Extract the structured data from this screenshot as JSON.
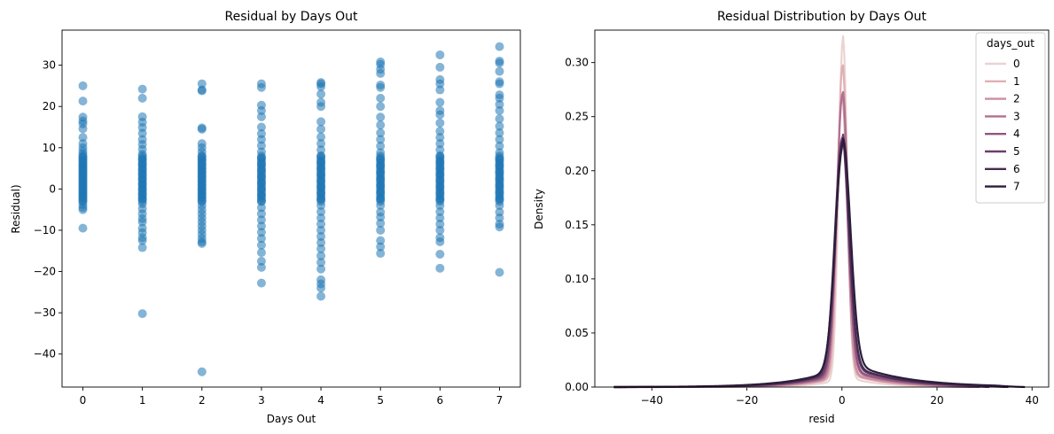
{
  "chart_data": [
    {
      "type": "scatter",
      "title": "Residual by Days Out",
      "xlabel": "Days Out",
      "ylabel": "Residual)",
      "xlim": [
        -0.35,
        7.35
      ],
      "ylim": [
        -48,
        38.5
      ],
      "xticks": [
        0,
        1,
        2,
        3,
        4,
        5,
        6,
        7
      ],
      "yticks": [
        -40,
        -30,
        -20,
        -10,
        0,
        10,
        20,
        30
      ],
      "marker_color": "#1f77b4",
      "marker_alpha": 0.55,
      "series": [
        {
          "x": 0,
          "values": [
            25.0,
            21.3,
            17.4,
            16.5,
            15.8,
            14.6,
            12.5,
            11.0,
            10.0,
            9.2,
            8.5,
            7.8,
            7.0,
            6.2,
            5.5,
            4.8,
            4.1,
            3.4,
            2.7,
            2.0,
            1.3,
            0.6,
            -0.1,
            -0.8,
            -1.5,
            -2.2,
            -3.0,
            -3.8,
            -4.5,
            -5.0,
            -9.5
          ]
        },
        {
          "x": 1,
          "values": [
            24.2,
            22.0,
            17.5,
            16.2,
            14.9,
            13.5,
            12.0,
            10.8,
            9.6,
            8.4,
            7.2,
            6.0,
            4.8,
            3.6,
            2.4,
            1.2,
            0.0,
            -1.2,
            -2.4,
            -3.6,
            -4.8,
            -6.0,
            -7.2,
            -8.0,
            -9.5,
            -10.6,
            -11.8,
            -12.5,
            -14.2,
            -30.2
          ]
        },
        {
          "x": 2,
          "values": [
            25.5,
            24.0,
            23.8,
            14.8,
            14.5,
            11.0,
            10.0,
            9.0,
            8.0,
            7.0,
            6.0,
            5.0,
            4.0,
            3.0,
            2.0,
            1.0,
            0.0,
            -1.0,
            -2.0,
            -3.0,
            -4.0,
            -5.0,
            -6.0,
            -7.0,
            -8.0,
            -9.0,
            -10.0,
            -11.0,
            -12.0,
            -12.8,
            -13.2,
            -44.3
          ]
        },
        {
          "x": 3,
          "values": [
            25.5,
            24.6,
            20.3,
            19.0,
            17.5,
            15.0,
            13.4,
            12.0,
            10.5,
            9.0,
            7.5,
            6.0,
            4.5,
            3.0,
            1.5,
            0.0,
            -1.5,
            -3.0,
            -4.5,
            -6.0,
            -7.5,
            -9.0,
            -10.5,
            -12.0,
            -13.6,
            -15.4,
            -17.5,
            -19.0,
            -22.8
          ]
        },
        {
          "x": 4,
          "values": [
            25.8,
            25.5,
            24.8,
            23.0,
            21.0,
            20.0,
            16.3,
            14.5,
            12.6,
            11.0,
            9.5,
            8.0,
            6.5,
            5.0,
            3.5,
            2.0,
            0.5,
            -1.0,
            -2.5,
            -4.0,
            -5.5,
            -7.0,
            -8.5,
            -10.0,
            -11.5,
            -13.0,
            -14.5,
            -16.2,
            -17.8,
            -19.4,
            -22.0,
            -23.0,
            -24.0,
            -26.0
          ]
        },
        {
          "x": 5,
          "values": [
            30.8,
            30.2,
            29.0,
            28.0,
            25.2,
            24.6,
            22.0,
            20.0,
            17.4,
            15.5,
            13.6,
            12.0,
            10.4,
            8.8,
            7.2,
            5.6,
            4.0,
            2.4,
            0.8,
            -0.8,
            -2.4,
            -4.0,
            -5.6,
            -6.8,
            -8.3,
            -10.0,
            -12.5,
            -14.0,
            -15.6
          ]
        },
        {
          "x": 6,
          "values": [
            32.5,
            29.5,
            26.5,
            25.5,
            24.0,
            21.0,
            19.0,
            18.0,
            16.0,
            14.0,
            12.5,
            11.0,
            9.5,
            8.0,
            6.5,
            5.0,
            3.5,
            2.0,
            0.5,
            -1.0,
            -2.5,
            -4.0,
            -5.5,
            -7.0,
            -8.5,
            -10.0,
            -11.8,
            -12.8,
            -15.8,
            -19.2
          ]
        },
        {
          "x": 7,
          "values": [
            34.5,
            31.0,
            30.5,
            28.5,
            26.0,
            25.5,
            22.8,
            22.0,
            20.5,
            19.0,
            17.0,
            15.2,
            13.6,
            12.0,
            10.4,
            8.8,
            7.2,
            5.6,
            4.0,
            2.4,
            0.8,
            -0.8,
            -2.4,
            -4.0,
            -5.6,
            -7.0,
            -8.5,
            -9.2,
            -20.2
          ]
        }
      ]
    },
    {
      "type": "line",
      "title": "Residual Distribution by Days Out",
      "xlabel": "resid",
      "ylabel": "Density",
      "xlim": [
        -52,
        43.5
      ],
      "ylim": [
        0,
        0.33
      ],
      "xticks": [
        -40,
        -20,
        0,
        20,
        40
      ],
      "yticks": [
        0.0,
        0.05,
        0.1,
        0.15,
        0.2,
        0.25,
        0.3
      ],
      "ytick_labels": [
        "0.00",
        "0.05",
        "0.10",
        "0.15",
        "0.20",
        "0.25",
        "0.30"
      ],
      "legend": {
        "title": "days_out",
        "position": "top-right"
      },
      "series": [
        {
          "name": "0",
          "color": "#ebd3d2",
          "peak": 0.315,
          "center": 0.2,
          "width": 0.9,
          "tail": 0.01,
          "tail_scale": 7,
          "right_extent": 25
        },
        {
          "name": "1",
          "color": "#dfb0b4",
          "peak": 0.287,
          "center": 0.1,
          "width": 1.0,
          "tail": 0.014,
          "tail_scale": 8,
          "right_extent": 26
        },
        {
          "name": "2",
          "color": "#cb8ea1",
          "peak": 0.257,
          "center": 0.0,
          "width": 1.1,
          "tail": 0.016,
          "tail_scale": 8,
          "right_extent": 27
        },
        {
          "name": "3",
          "color": "#b0708f",
          "peak": 0.257,
          "center": 0.1,
          "width": 1.2,
          "tail": 0.018,
          "tail_scale": 9,
          "right_extent": 28
        },
        {
          "name": "4",
          "color": "#8f5680",
          "peak": 0.215,
          "center": 0.0,
          "width": 1.3,
          "tail": 0.02,
          "tail_scale": 9,
          "right_extent": 29
        },
        {
          "name": "5",
          "color": "#6a3f6c",
          "peak": 0.213,
          "center": 0.1,
          "width": 1.4,
          "tail": 0.022,
          "tail_scale": 10,
          "right_extent": 31
        },
        {
          "name": "6",
          "color": "#482c51",
          "peak": 0.208,
          "center": 0.0,
          "width": 1.5,
          "tail": 0.024,
          "tail_scale": 10,
          "right_extent": 35
        },
        {
          "name": "7",
          "color": "#2b1d3b",
          "peak": 0.204,
          "center": 0.2,
          "width": 1.6,
          "tail": 0.026,
          "tail_scale": 11,
          "right_extent": 38.5
        }
      ]
    }
  ]
}
